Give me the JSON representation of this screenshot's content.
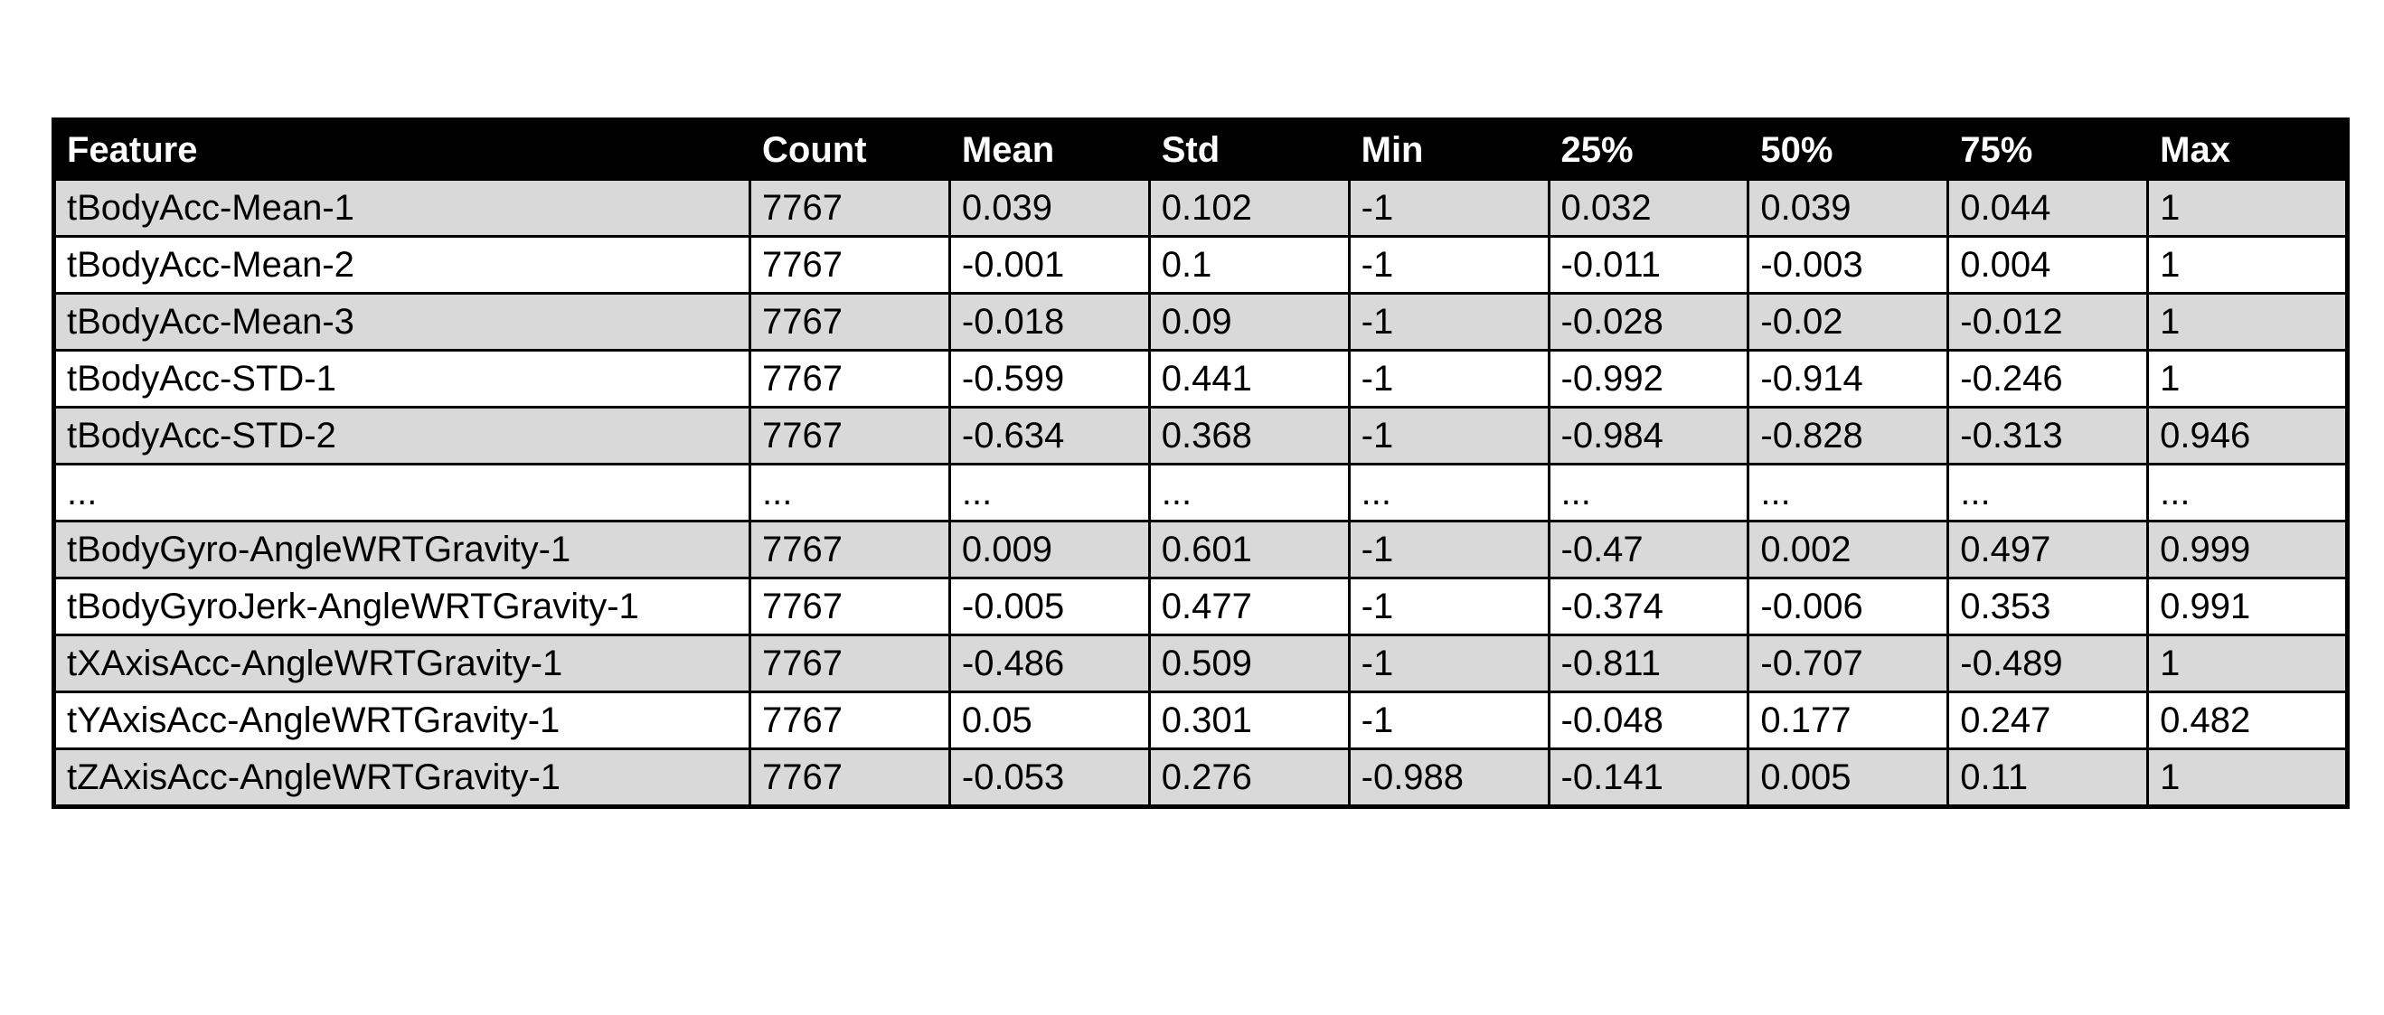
{
  "table": {
    "headers": [
      "Feature",
      "Count",
      "Mean",
      "Std",
      "Min",
      "25%",
      "50%",
      "75%",
      "Max"
    ],
    "rows": [
      [
        "tBodyAcc-Mean-1",
        "7767",
        "0.039",
        "0.102",
        "-1",
        "0.032",
        "0.039",
        "0.044",
        "1"
      ],
      [
        "tBodyAcc-Mean-2",
        "7767",
        "-0.001",
        "0.1",
        "-1",
        "-0.011",
        "-0.003",
        "0.004",
        "1"
      ],
      [
        "tBodyAcc-Mean-3",
        "7767",
        "-0.018",
        "0.09",
        "-1",
        "-0.028",
        "-0.02",
        "-0.012",
        "1"
      ],
      [
        "tBodyAcc-STD-1",
        "7767",
        "-0.599",
        "0.441",
        "-1",
        "-0.992",
        "-0.914",
        "-0.246",
        "1"
      ],
      [
        "tBodyAcc-STD-2",
        "7767",
        "-0.634",
        "0.368",
        "-1",
        "-0.984",
        "-0.828",
        "-0.313",
        "0.946"
      ],
      [
        "...",
        "...",
        "...",
        "...",
        "...",
        "...",
        "...",
        "...",
        "..."
      ],
      [
        "tBodyGyro-AngleWRTGravity-1",
        "7767",
        "0.009",
        "0.601",
        "-1",
        "-0.47",
        "0.002",
        "0.497",
        "0.999"
      ],
      [
        "tBodyGyroJerk-AngleWRTGravity-1",
        "7767",
        "-0.005",
        "0.477",
        "-1",
        "-0.374",
        "-0.006",
        "0.353",
        "0.991"
      ],
      [
        "tXAxisAcc-AngleWRTGravity-1",
        "7767",
        "-0.486",
        "0.509",
        "-1",
        "-0.811",
        "-0.707",
        "-0.489",
        "1"
      ],
      [
        "tYAxisAcc-AngleWRTGravity-1",
        "7767",
        "0.05",
        "0.301",
        "-1",
        "-0.048",
        "0.177",
        "0.247",
        "0.482"
      ],
      [
        "tZAxisAcc-AngleWRTGravity-1",
        "7767",
        "-0.053",
        "0.276",
        "-0.988",
        "-0.141",
        "0.005",
        "0.11",
        "1"
      ]
    ]
  }
}
